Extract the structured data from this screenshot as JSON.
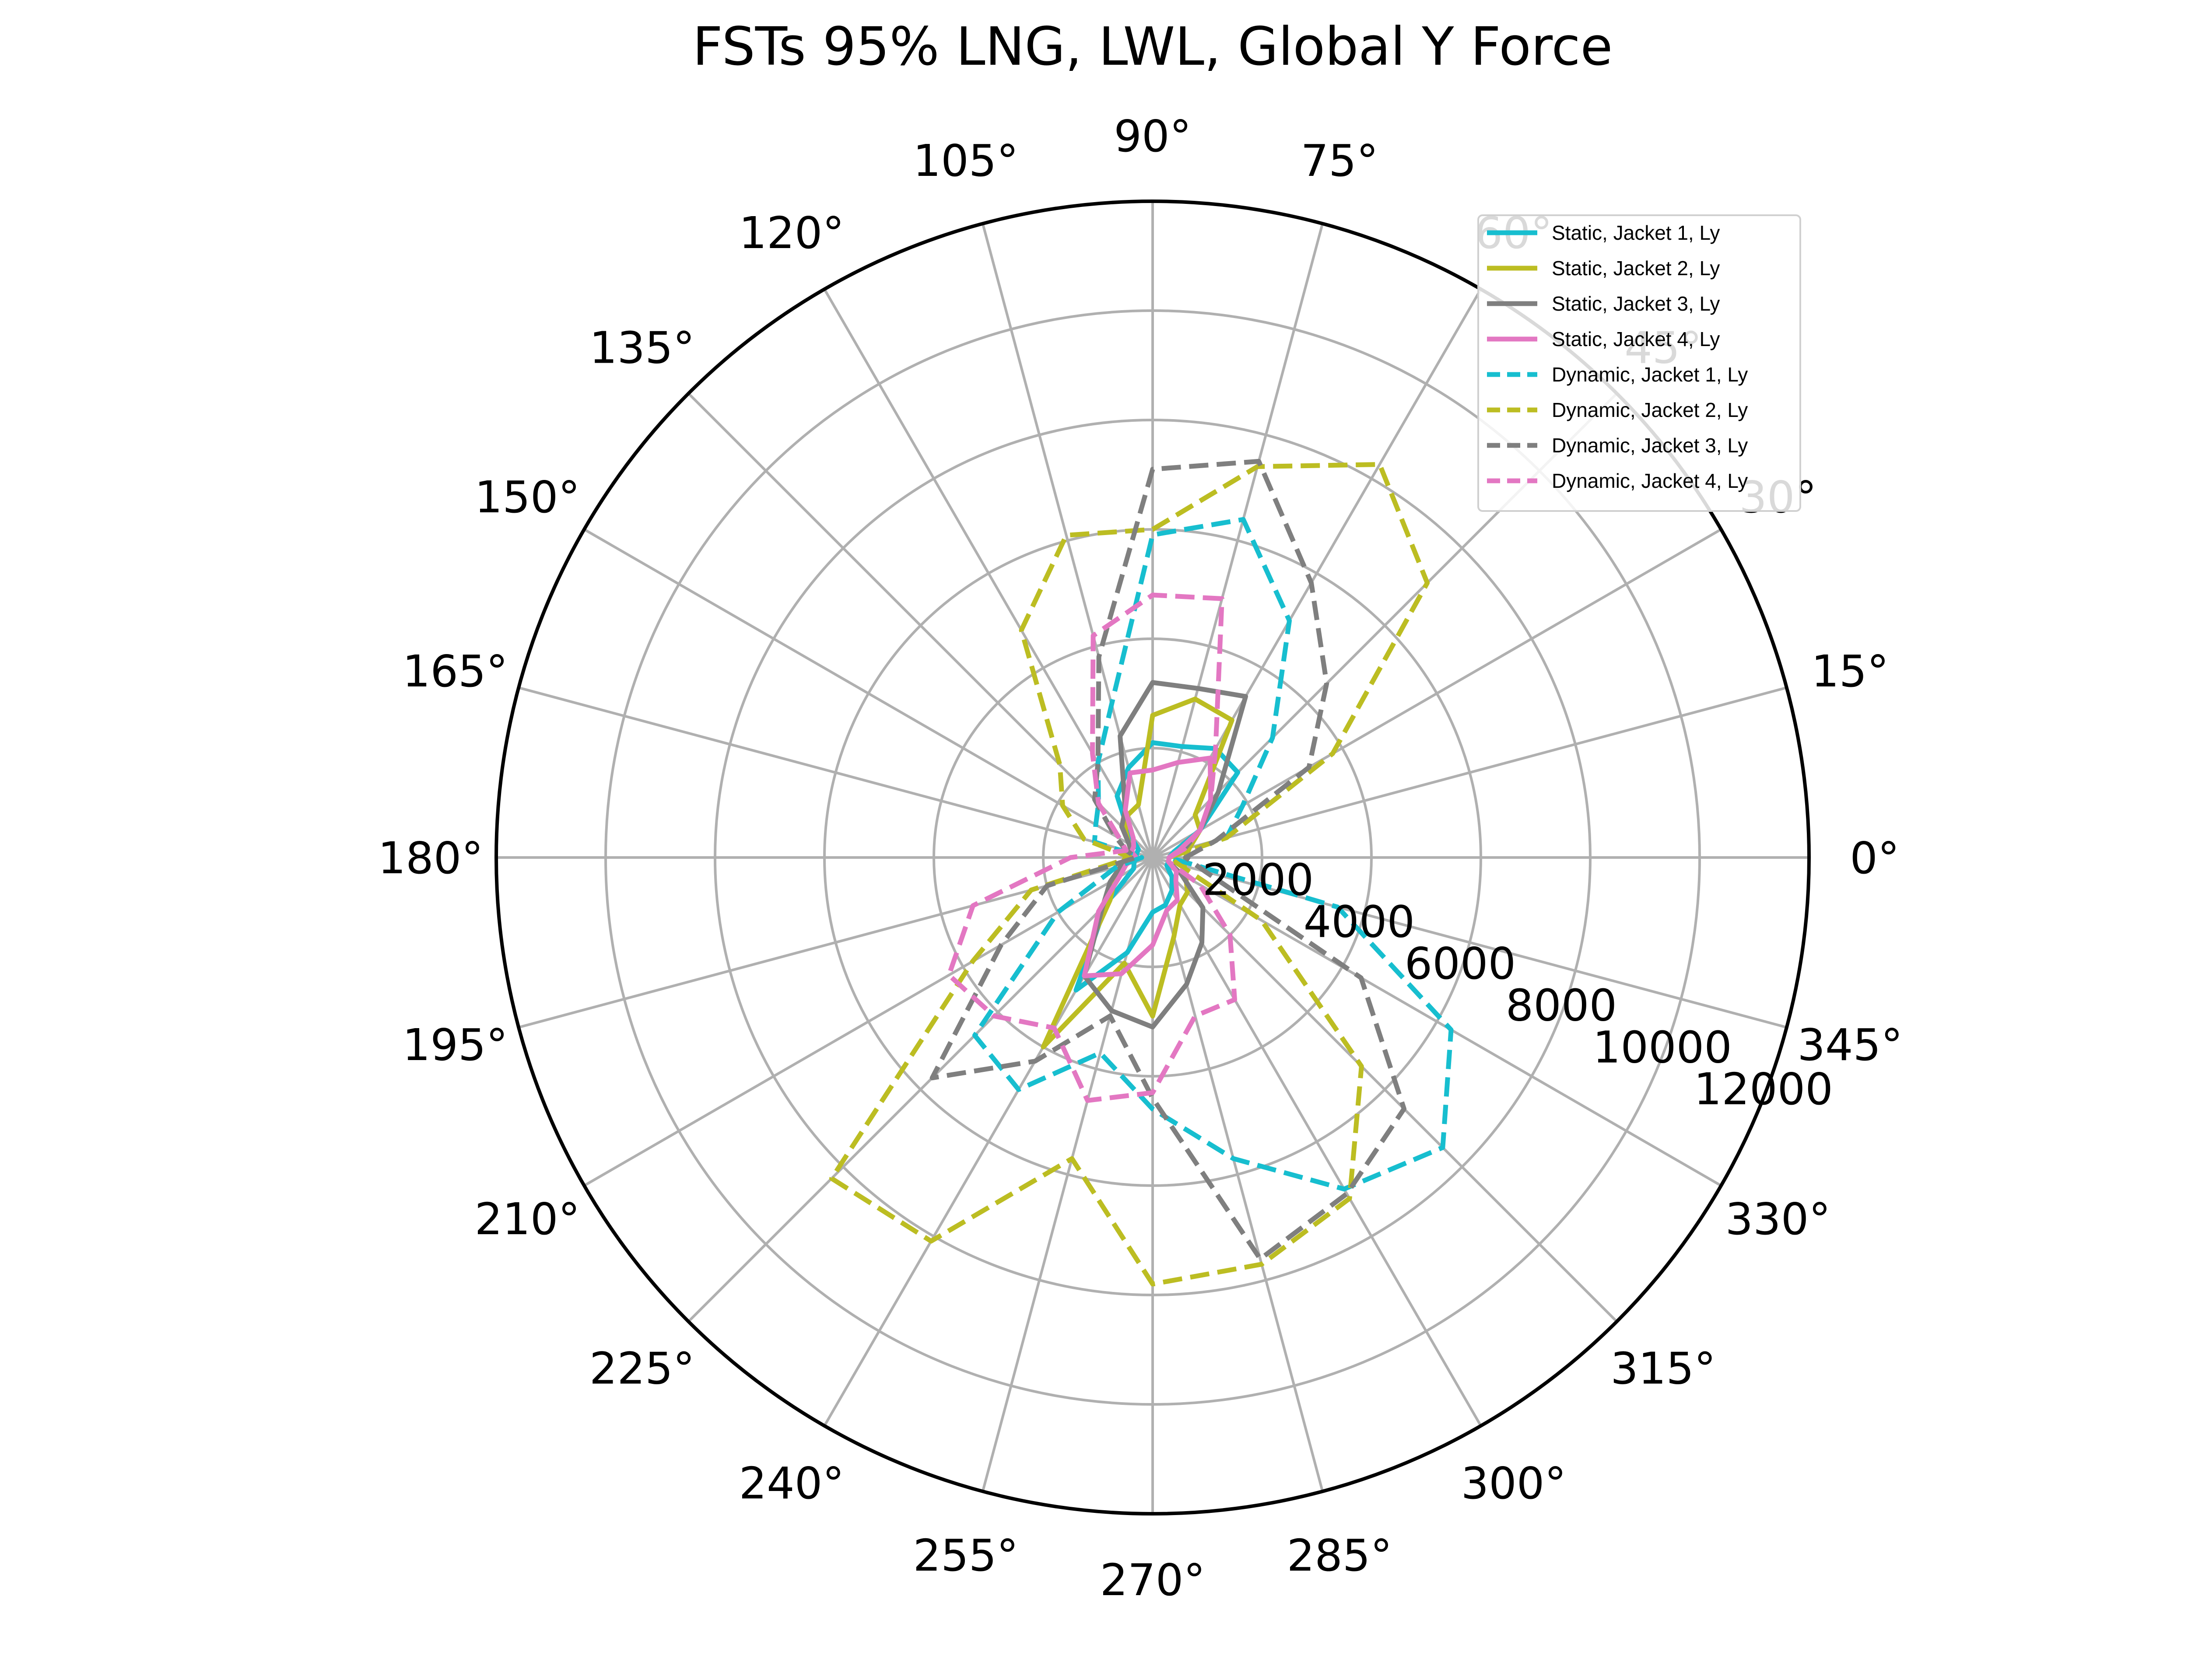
{
  "chart_data": {
    "type": "polar-line",
    "title": "FSTs 95% LNG, LWL, Global Y Force",
    "angle_unit": "deg",
    "theta_ticks": [
      "0°",
      "15°",
      "30°",
      "45°",
      "60°",
      "75°",
      "90°",
      "105°",
      "120°",
      "135°",
      "150°",
      "165°",
      "180°",
      "195°",
      "210°",
      "225°",
      "240°",
      "255°",
      "270°",
      "285°",
      "300°",
      "315°",
      "330°",
      "345°"
    ],
    "r_ticks": [
      "2000",
      "4000",
      "6000",
      "8000",
      "10000",
      "12000"
    ],
    "rlim": [
      0,
      12000
    ],
    "grid": true,
    "legend_position": "top-right",
    "theta": [
      0,
      15,
      30,
      45,
      60,
      75,
      90,
      105,
      120,
      135,
      150,
      165,
      180,
      195,
      210,
      225,
      240,
      255,
      270,
      285,
      300,
      315,
      330,
      345
    ],
    "series": [
      {
        "name": "Static, Jacket 1, Ly",
        "color": "#17becf",
        "dash": "solid",
        "values": [
          300,
          400,
          1000,
          2200,
          2300,
          2100,
          2100,
          1700,
          1300,
          600,
          300,
          300,
          300,
          350,
          400,
          1200,
          2800,
          1800,
          1000,
          900,
          700,
          500,
          300,
          300
        ]
      },
      {
        "name": "Static, Jacket 2, Ly",
        "color": "#bcbd22",
        "dash": "solid",
        "values": [
          600,
          700,
          1000,
          1100,
          2900,
          3000,
          2600,
          1000,
          900,
          700,
          500,
          400,
          500,
          600,
          800,
          1100,
          4000,
          2000,
          2900,
          1500,
          1000,
          900,
          700,
          600
        ]
      },
      {
        "name": "Static, Jacket 3, Ly",
        "color": "#7f7f7f",
        "dash": "solid",
        "values": [
          300,
          600,
          1000,
          1700,
          3400,
          3200,
          3200,
          2300,
          1000,
          800,
          500,
          400,
          400,
          600,
          900,
          1300,
          2500,
          2900,
          3100,
          2400,
          1800,
          1300,
          600,
          300
        ]
      },
      {
        "name": "Static, Jacket 4, Ly",
        "color": "#e377c2",
        "dash": "solid",
        "values": [
          300,
          500,
          1000,
          1500,
          2100,
          1800,
          1600,
          1600,
          1000,
          500,
          400,
          400,
          300,
          500,
          700,
          1400,
          2500,
          2200,
          1600,
          1000,
          900,
          600,
          500,
          300
        ]
      },
      {
        "name": "Dynamic, Jacket 1, Ly",
        "color": "#17becf",
        "dash": "dashed",
        "values": [
          300,
          1400,
          1900,
          3100,
          5000,
          6400,
          5900,
          2900,
          2000,
          1400,
          1200,
          1100,
          200,
          700,
          2000,
          4600,
          4900,
          3700,
          4600,
          5700,
          7000,
          7500,
          6300,
          3500
        ]
      },
      {
        "name": "Dynamic, Jacket 2, Ly",
        "color": "#bcbd22",
        "dash": "dashed",
        "values": [
          300,
          1400,
          3800,
          7100,
          8300,
          7400,
          6000,
          6100,
          4800,
          2400,
          1900,
          1300,
          400,
          2300,
          3800,
          8300,
          8100,
          5700,
          7800,
          7700,
          7200,
          5400,
          2300,
          500
        ]
      },
      {
        "name": "Dynamic, Jacket 3, Ly",
        "color": "#7f7f7f",
        "dash": "dashed",
        "values": [
          600,
          1200,
          3300,
          4500,
          5800,
          7500,
          7100,
          3800,
          2000,
          1500,
          800,
          500,
          300,
          2000,
          3200,
          5700,
          4300,
          3000,
          4400,
          7600,
          7100,
          6500,
          4400,
          1000
        ]
      },
      {
        "name": "Dynamic, Jacket 4, Ly",
        "color": "#e377c2",
        "dash": "dashed",
        "values": [
          300,
          600,
          1000,
          1500,
          2300,
          4900,
          4800,
          4200,
          2200,
          1400,
          700,
          500,
          1500,
          3400,
          4300,
          4100,
          3600,
          4600,
          4300,
          3000,
          3000,
          2000,
          1000,
          300
        ]
      }
    ]
  }
}
